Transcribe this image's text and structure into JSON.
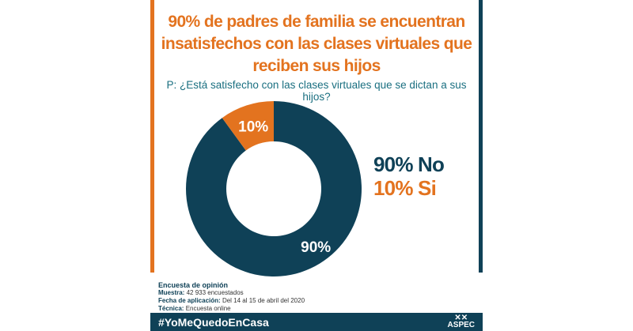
{
  "title": "90% de padres de familia se encuentran insatisfechos con las clases virtuales que reciben sus hijos",
  "question": "P: ¿Está satisfecho con las clases virtuales que se dictan a sus hijos?",
  "chart_data": {
    "type": "pie",
    "style": "donut",
    "categories": [
      "No",
      "Si"
    ],
    "values": [
      90,
      10
    ],
    "data_labels": [
      "90%",
      "10%"
    ],
    "colors": [
      "#0f4157",
      "#e3731f"
    ],
    "legend": [
      "90% No",
      "10% Si"
    ],
    "legend_placement": "right"
  },
  "meta": {
    "heading": "Encuesta de opinión",
    "sample_label": "Muestra:",
    "sample_value": "42 933 encuestados",
    "date_label": "Fecha de aplicación:",
    "date_value": "Del 14 al 15 de abril del 2020",
    "technique_label": "Técnica:",
    "technique_value": "Encuesta online"
  },
  "footer": {
    "hashtag": "#YoMeQuedoEnCasa",
    "logo": "ASPEC"
  }
}
